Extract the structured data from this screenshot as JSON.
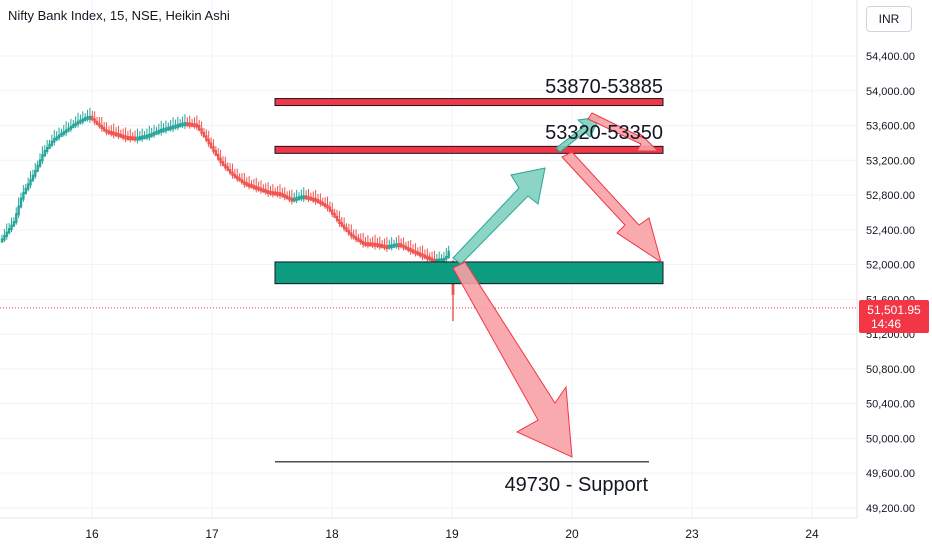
{
  "header": {
    "symbol_title": "Nifty Bank Index, 15, NSE, Heikin Ashi",
    "currency": "INR"
  },
  "chart_data": {
    "type": "candlestick",
    "title": "Nifty Bank Index, 15, NSE, Heikin Ashi",
    "ylim": [
      49050,
      54700
    ],
    "y_ticks": [
      "54,400.00",
      "54,000.00",
      "53,600.00",
      "53,200.00",
      "52,800.00",
      "52,400.00",
      "52,000.00",
      "51,600.00",
      "51,200.00",
      "50,800.00",
      "50,400.00",
      "50,000.00",
      "49,600.00",
      "49,200.00"
    ],
    "y_tick_values": [
      54400,
      54000,
      53600,
      53200,
      52800,
      52400,
      52000,
      51600,
      51200,
      50800,
      50400,
      50000,
      49600,
      49200
    ],
    "x_ticks": [
      "16",
      "17",
      "18",
      "19",
      "20",
      "23",
      "24"
    ],
    "last_price": {
      "label": "51,501.95",
      "countdown": "14:46",
      "value": 51501.95,
      "color": "#f23645"
    },
    "colors": {
      "up": "#26a69a",
      "down": "#ef5350",
      "zone": "#0e9c80",
      "arrow_green": "#7fcfbd",
      "arrow_red": "#f7a1a6"
    },
    "series_path": [
      [
        0,
        52300
      ],
      [
        6,
        52500
      ],
      [
        10,
        52800
      ],
      [
        16,
        53050
      ],
      [
        21,
        53300
      ],
      [
        26,
        53450
      ],
      [
        32,
        53550
      ],
      [
        38,
        53650
      ],
      [
        44,
        53720
      ],
      [
        47,
        53650
      ],
      [
        52,
        53550
      ],
      [
        57,
        53520
      ],
      [
        62,
        53480
      ],
      [
        68,
        53470
      ],
      [
        74,
        53500
      ],
      [
        80,
        53560
      ],
      [
        86,
        53600
      ],
      [
        92,
        53640
      ],
      [
        98,
        53620
      ],
      [
        104,
        53420
      ],
      [
        110,
        53200
      ],
      [
        116,
        53050
      ],
      [
        122,
        52950
      ],
      [
        128,
        52900
      ],
      [
        134,
        52850
      ],
      [
        140,
        52830
      ],
      [
        146,
        52760
      ],
      [
        152,
        52800
      ],
      [
        158,
        52760
      ],
      [
        164,
        52680
      ],
      [
        170,
        52500
      ],
      [
        176,
        52350
      ],
      [
        182,
        52260
      ],
      [
        188,
        52250
      ],
      [
        194,
        52220
      ],
      [
        200,
        52250
      ],
      [
        206,
        52180
      ],
      [
        212,
        52120
      ],
      [
        218,
        52060
      ],
      [
        224,
        52080
      ],
      [
        226,
        52180
      ],
      [
        228,
        51950
      ],
      [
        229,
        51500
      ]
    ],
    "levels": [
      {
        "label": "53870-53885",
        "value": 53870,
        "type": "resistance"
      },
      {
        "label": "53320-53350",
        "value": 53320,
        "type": "resistance"
      },
      {
        "label": "49730 - Support",
        "value": 49730,
        "type": "support"
      }
    ],
    "demand_zone": {
      "low": 51780,
      "high": 52030
    }
  }
}
